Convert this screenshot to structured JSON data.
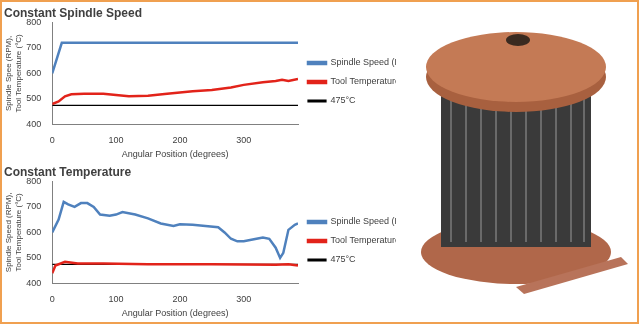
{
  "chart_data": [
    {
      "type": "line",
      "title": "Constant Spindle Speed",
      "x_label": "Angular Position (degrees)",
      "y_label": [
        "Spindle Spee (RPM),",
        "Tool Temperature (°C)"
      ],
      "xlim": [
        0,
        385
      ],
      "xticks": [
        0,
        100,
        200,
        300
      ],
      "ylim": [
        400,
        800
      ],
      "yticks": [
        400,
        500,
        600,
        700,
        800
      ],
      "grid": false,
      "legend": "right",
      "series": [
        {
          "name": "Spindle Speed (RPM)",
          "color": "#4f81bd",
          "x": [
            0,
            15,
            385
          ],
          "values": [
            600,
            720,
            720
          ]
        },
        {
          "name": "Tool Temperature (°C)",
          "color": "#e2231a",
          "x": [
            0,
            10,
            20,
            30,
            50,
            80,
            100,
            120,
            150,
            180,
            200,
            220,
            250,
            280,
            300,
            330,
            350,
            360,
            370,
            385
          ],
          "values": [
            480,
            490,
            510,
            518,
            520,
            520,
            515,
            510,
            512,
            520,
            525,
            530,
            535,
            545,
            555,
            565,
            570,
            575,
            570,
            578
          ]
        },
        {
          "name": "475°C",
          "color": "#000000",
          "x": [
            0,
            385
          ],
          "values": [
            475,
            475
          ]
        }
      ]
    },
    {
      "type": "line",
      "title": "Constant Temperature",
      "x_label": "Angular Position (degrees)",
      "y_label": [
        "Spindle Speed (RPM),",
        "Tool Temperature (°C)"
      ],
      "xlim": [
        0,
        385
      ],
      "xticks": [
        0,
        100,
        200,
        300
      ],
      "ylim": [
        400,
        800
      ],
      "yticks": [
        400,
        500,
        600,
        700,
        800
      ],
      "grid": false,
      "legend": "right",
      "series": [
        {
          "name": "Spindle Speed (RPM)",
          "color": "#4f81bd",
          "x": [
            0,
            10,
            18,
            25,
            35,
            45,
            55,
            65,
            75,
            90,
            100,
            110,
            130,
            150,
            170,
            190,
            200,
            220,
            240,
            260,
            270,
            280,
            290,
            300,
            320,
            330,
            340,
            350,
            357,
            362,
            370,
            380,
            385
          ],
          "values": [
            600,
            650,
            720,
            710,
            700,
            715,
            715,
            700,
            670,
            665,
            670,
            680,
            670,
            655,
            635,
            625,
            632,
            630,
            625,
            620,
            600,
            575,
            565,
            565,
            575,
            580,
            575,
            540,
            500,
            520,
            610,
            630,
            635
          ]
        },
        {
          "name": "Tool Temperature (°C)",
          "color": "#e2231a",
          "x": [
            0,
            5,
            20,
            40,
            80,
            150,
            250,
            350,
            370,
            385
          ],
          "values": [
            440,
            470,
            485,
            478,
            478,
            475,
            475,
            473,
            475,
            470
          ]
        },
        {
          "name": "475°C",
          "color": "#000000",
          "x": [
            0,
            385
          ],
          "values": [
            475,
            475
          ]
        }
      ]
    }
  ]
}
